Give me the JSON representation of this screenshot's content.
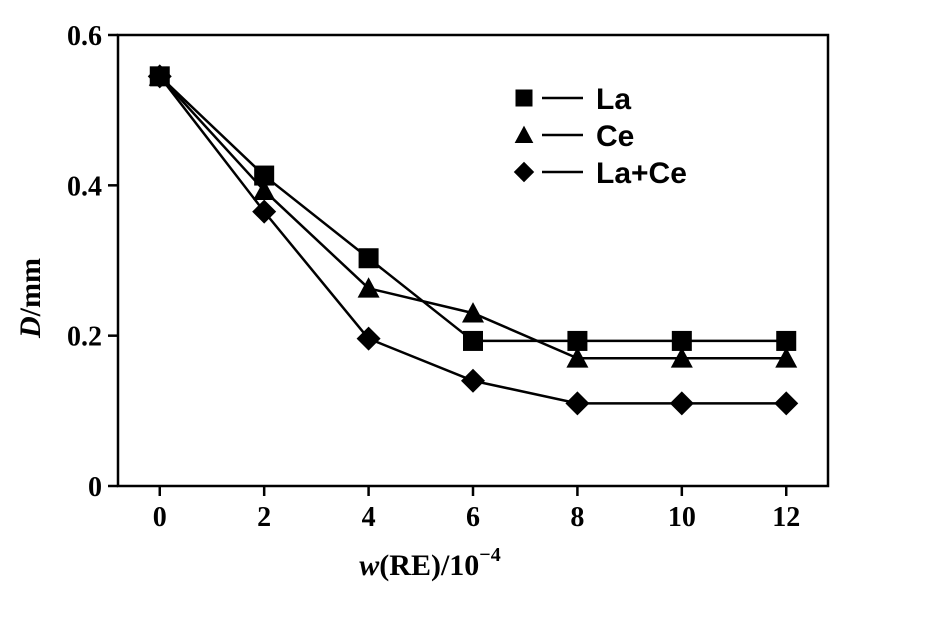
{
  "chart_data": {
    "type": "line",
    "x": [
      0,
      2,
      4,
      6,
      8,
      10,
      12
    ],
    "series": [
      {
        "name": "La",
        "marker": "square",
        "values": [
          0.545,
          0.413,
          0.303,
          0.193,
          0.193,
          0.193,
          0.193
        ]
      },
      {
        "name": "Ce",
        "marker": "triangle",
        "values": [
          0.545,
          0.393,
          0.263,
          0.23,
          0.17,
          0.17,
          0.17
        ]
      },
      {
        "name": "La+Ce",
        "marker": "diamond",
        "values": [
          0.545,
          0.365,
          0.196,
          0.14,
          0.11,
          0.11,
          0.11
        ]
      }
    ],
    "xticks": [
      "0",
      "2",
      "4",
      "6",
      "8",
      "10",
      "12"
    ],
    "yticks": [
      "0",
      "0.2",
      "0.4",
      "0.6"
    ],
    "ylabel": {
      "symbol": "D",
      "unit": "/mm"
    },
    "xlabel": {
      "symbol": "w",
      "rest": "(RE)/10",
      "exponent": "−4"
    },
    "xlim": [
      -0.8,
      12.8
    ],
    "ylim": [
      0,
      0.6
    ],
    "grid": false,
    "legend_position": "top-right",
    "color": "#000000"
  }
}
